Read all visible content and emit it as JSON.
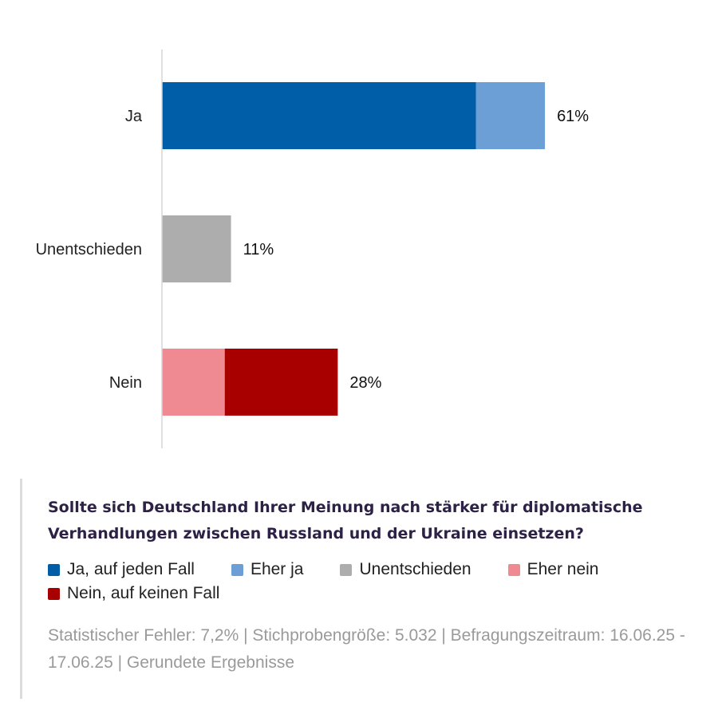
{
  "chart_data": {
    "type": "bar",
    "orientation": "horizontal",
    "stacked": true,
    "categories": [
      "Ja",
      "Unentschieden",
      "Nein"
    ],
    "series": [
      {
        "name": "Ja, auf jeden Fall",
        "color": "#005ea8",
        "values": [
          50,
          0,
          0
        ]
      },
      {
        "name": "Eher ja",
        "color": "#6b9fd6",
        "values": [
          11,
          0,
          0
        ]
      },
      {
        "name": "Unentschieden",
        "color": "#adadad",
        "values": [
          0,
          11,
          0
        ]
      },
      {
        "name": "Eher nein",
        "color": "#f08a92",
        "values": [
          0,
          0,
          10
        ]
      },
      {
        "name": "Nein, auf keinen Fall",
        "color": "#a80000",
        "values": [
          0,
          0,
          18
        ]
      }
    ],
    "totals": [
      61,
      11,
      28
    ],
    "total_labels": [
      "61%",
      "11%",
      "28%"
    ],
    "xlim": [
      0,
      100
    ],
    "grid": false,
    "legend_position": "bottom"
  },
  "question": "Sollte sich Deutschland Ihrer Meinung nach stärker für diplomatische Verhandlungen zwischen Russland und der Ukraine einsetzen?",
  "legend": [
    {
      "label": "Ja, auf jeden Fall",
      "color": "#005ea8"
    },
    {
      "label": "Eher ja",
      "color": "#6b9fd6"
    },
    {
      "label": "Unentschieden",
      "color": "#adadad"
    },
    {
      "label": "Eher nein",
      "color": "#f08a92"
    },
    {
      "label": "Nein, auf keinen Fall",
      "color": "#a80000"
    }
  ],
  "footnote": "Statistischer Fehler: 7,2% | Stichprobengröße: 5.032 | Befragungszeitraum: 16.06.25 - 17.06.25 | Gerundete Ergebnisse"
}
